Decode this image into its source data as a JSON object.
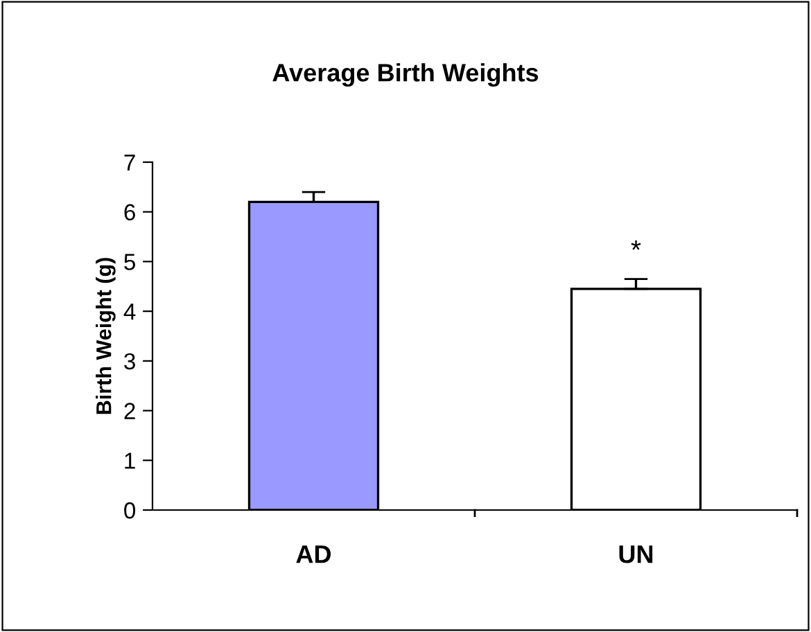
{
  "chart_data": {
    "type": "bar",
    "title": "Average Birth Weights",
    "ylabel": "Birth Weight (g)",
    "categories": [
      "AD",
      "UN"
    ],
    "values": [
      6.2,
      4.45
    ],
    "colors": [
      "#9999ff",
      "#ffffff"
    ],
    "errors": [
      [
        6.2,
        6.4
      ],
      [
        4.45,
        4.65
      ]
    ],
    "ylim": [
      0,
      7
    ],
    "yticks": [
      0,
      1,
      2,
      3,
      4,
      5,
      6,
      7
    ],
    "grid": false,
    "legend": false,
    "annotations": [
      "*"
    ]
  }
}
